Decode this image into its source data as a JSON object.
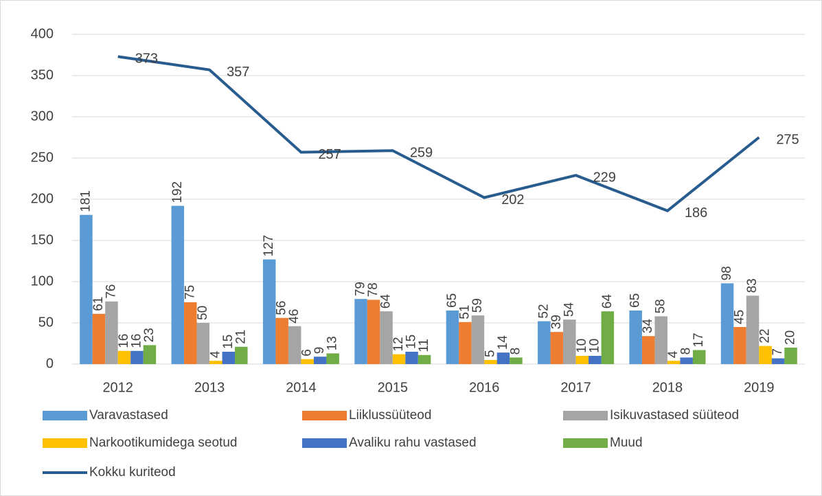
{
  "chart_data": {
    "type": "bar",
    "categories": [
      "2012",
      "2013",
      "2014",
      "2015",
      "2016",
      "2017",
      "2018",
      "2019"
    ],
    "series": [
      {
        "name": "Varavastased",
        "color": "#5b9bd5",
        "values": [
          181,
          192,
          127,
          79,
          65,
          52,
          65,
          98
        ]
      },
      {
        "name": "Liiklussüüteod",
        "color": "#ed7d31",
        "values": [
          61,
          75,
          56,
          78,
          51,
          39,
          34,
          45
        ]
      },
      {
        "name": "Isikuvastased süüteod",
        "color": "#a5a5a5",
        "values": [
          76,
          50,
          46,
          64,
          59,
          54,
          58,
          83
        ]
      },
      {
        "name": "Narkootikumidega seotud",
        "color": "#ffc000",
        "values": [
          16,
          4,
          6,
          12,
          5,
          10,
          4,
          22
        ]
      },
      {
        "name": "Avaliku rahu vastased",
        "color": "#4472c4",
        "values": [
          16,
          15,
          9,
          15,
          14,
          10,
          8,
          7
        ]
      },
      {
        "name": "Muud",
        "color": "#70ad47",
        "values": [
          23,
          21,
          13,
          11,
          8,
          64,
          17,
          20
        ]
      },
      {
        "name": "Kokku kuriteod",
        "color": "#285c8e",
        "type": "line",
        "values": [
          373,
          357,
          257,
          259,
          202,
          229,
          186,
          275
        ]
      }
    ],
    "ylim": [
      0,
      400
    ],
    "yticks": [
      0,
      50,
      100,
      150,
      200,
      250,
      300,
      350,
      400
    ],
    "grid": true,
    "legend": "bottom"
  }
}
